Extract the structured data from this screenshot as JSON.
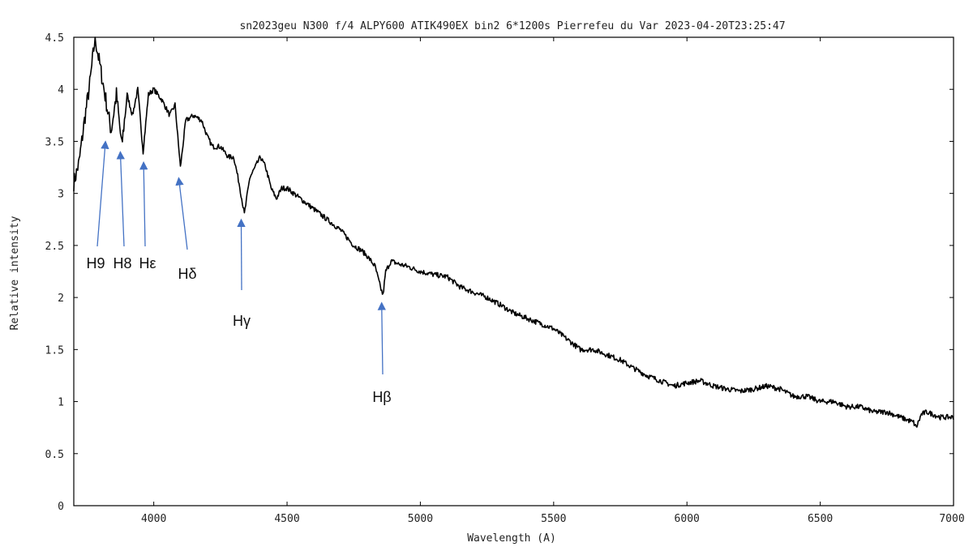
{
  "chart_data": {
    "type": "line",
    "title": "sn2023geu  N300 f/4 ALPY600 ATIK490EX bin2 6*1200s Pierrefeu du Var 2023-04-20T23:25:47",
    "xlabel": "Wavelength (A)",
    "ylabel": "Relative intensity",
    "xlim": [
      3700,
      7000
    ],
    "ylim": [
      0,
      4.5
    ],
    "xticks": [
      "4000",
      "4500",
      "5000",
      "5500",
      "6000",
      "6500",
      "7000"
    ],
    "yticks": [
      "0",
      "0.5",
      "1",
      "1.5",
      "2",
      "2.5",
      "3",
      "3.5",
      "4",
      "4.5"
    ],
    "grid": false,
    "line_color": "#000000",
    "annotation_color": "#4472c4",
    "series": [
      {
        "x": [
          3700,
          3720,
          3740,
          3760,
          3780,
          3800,
          3820,
          3840,
          3860,
          3880,
          3900,
          3920,
          3940,
          3960,
          3980,
          4000,
          4030,
          4060,
          4080,
          4100,
          4120,
          4150,
          4180,
          4200,
          4220,
          4250,
          4280,
          4300,
          4320,
          4340,
          4360,
          4380,
          4400,
          4420,
          4440,
          4460,
          4480,
          4500,
          4550,
          4600,
          4650,
          4700,
          4750,
          4780,
          4800,
          4830,
          4850,
          4860,
          4870,
          4890,
          4920,
          4950,
          5000,
          5050,
          5100,
          5150,
          5200,
          5250,
          5300,
          5350,
          5400,
          5450,
          5500,
          5550,
          5600,
          5650,
          5700,
          5750,
          5800,
          5850,
          5900,
          5950,
          6000,
          6050,
          6100,
          6150,
          6200,
          6250,
          6300,
          6350,
          6400,
          6450,
          6500,
          6550,
          6600,
          6650,
          6700,
          6750,
          6800,
          6850,
          6860,
          6880,
          6900,
          6950,
          7000
        ],
        "y": [
          3.1,
          3.3,
          3.7,
          4.05,
          4.5,
          4.2,
          3.9,
          3.6,
          3.95,
          3.45,
          3.95,
          3.75,
          4.0,
          3.4,
          3.95,
          4.0,
          3.9,
          3.75,
          3.85,
          3.25,
          3.7,
          3.75,
          3.7,
          3.55,
          3.45,
          3.45,
          3.35,
          3.35,
          3.1,
          2.8,
          3.15,
          3.25,
          3.35,
          3.25,
          3.05,
          2.95,
          3.05,
          3.05,
          2.95,
          2.85,
          2.75,
          2.65,
          2.5,
          2.45,
          2.4,
          2.3,
          2.1,
          2.02,
          2.25,
          2.35,
          2.32,
          2.3,
          2.25,
          2.22,
          2.2,
          2.1,
          2.05,
          2.0,
          1.93,
          1.85,
          1.8,
          1.75,
          1.7,
          1.6,
          1.5,
          1.5,
          1.45,
          1.4,
          1.32,
          1.25,
          1.2,
          1.15,
          1.18,
          1.2,
          1.15,
          1.12,
          1.1,
          1.12,
          1.15,
          1.12,
          1.05,
          1.05,
          1.0,
          1.0,
          0.95,
          0.95,
          0.9,
          0.9,
          0.85,
          0.8,
          0.75,
          0.88,
          0.9,
          0.85,
          0.85
        ]
      }
    ],
    "annotations": [
      {
        "label": "H9",
        "x": 3818,
        "y": 3.5
      },
      {
        "label": "H8",
        "x": 3875,
        "y": 3.4
      },
      {
        "label": "Hε",
        "x": 3962,
        "y": 3.3
      },
      {
        "label": "Hδ",
        "x": 4095,
        "y": 3.15
      },
      {
        "label": "Hγ",
        "x": 4328,
        "y": 2.75
      },
      {
        "label": "Hβ",
        "x": 4855,
        "y": 1.95
      }
    ]
  }
}
